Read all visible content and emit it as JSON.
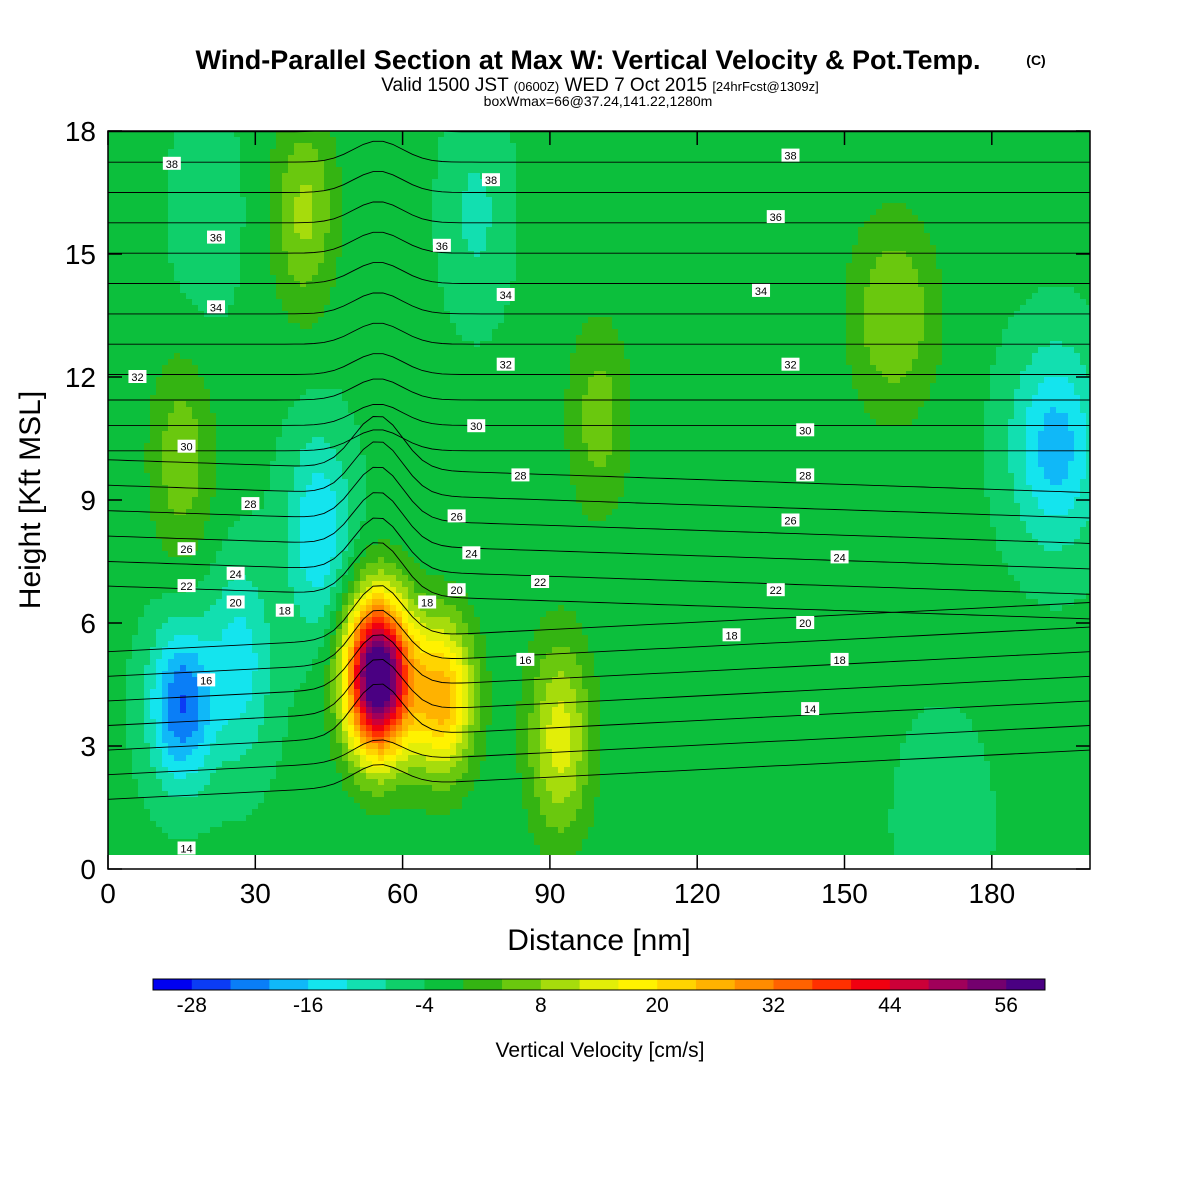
{
  "header": {
    "title": "Wind-Parallel Section at Max W: Vertical Velocity & Pot.Temp.",
    "title_suffix": "(C)",
    "valid_line_a": "Valid 1500 JST",
    "valid_line_b": "(0600Z)",
    "valid_line_c": "WED 7 Oct 2015",
    "valid_line_d": "[24hrFcst@1309z]",
    "box_line": "boxWmax=66@37.24,141.22,1280m"
  },
  "chart_data": {
    "type": "heatmap",
    "xlabel": "Distance [nm]",
    "ylabel": "Height [Kft MSL]",
    "xlim": [
      0,
      200
    ],
    "ylim": [
      0,
      18
    ],
    "x_ticks": [
      "0",
      "30",
      "60",
      "90",
      "120",
      "150",
      "180"
    ],
    "x_tick_values": [
      0,
      30,
      60,
      90,
      120,
      150,
      180
    ],
    "y_ticks": [
      "0",
      "3",
      "6",
      "9",
      "12",
      "15",
      "18"
    ],
    "y_tick_values": [
      0,
      3,
      6,
      9,
      12,
      15,
      18
    ],
    "colorbar": {
      "label": "Vertical Velocity [cm/s]",
      "tick_labels": [
        "-28",
        "-16",
        "-4",
        "8",
        "20",
        "32",
        "44",
        "56"
      ],
      "tick_values": [
        -28,
        -16,
        -4,
        8,
        20,
        32,
        44,
        56
      ],
      "min": -32,
      "step": 4,
      "colors": [
        "#0000f0",
        "#0b3cf5",
        "#0a7ef7",
        "#10b8f8",
        "#14e4ee",
        "#12dfb0",
        "#0fcf6a",
        "#0cbf3c",
        "#34b412",
        "#6ac80e",
        "#a6dc0c",
        "#e2ee08",
        "#fff200",
        "#ffd400",
        "#ffb200",
        "#ff8c00",
        "#ff6200",
        "#ff3000",
        "#f00010",
        "#cc0038",
        "#a0005a",
        "#74006e",
        "#4a0082"
      ]
    },
    "velocity_centers": [
      {
        "x": 55,
        "z": 4.7,
        "v": 66
      },
      {
        "x": 68,
        "z": 4.2,
        "v": 26
      },
      {
        "x": 92,
        "z": 3.2,
        "v": 14
      },
      {
        "x": 40,
        "z": 16.0,
        "v": 9
      },
      {
        "x": 15,
        "z": 10.0,
        "v": 7
      },
      {
        "x": 160,
        "z": 13.5,
        "v": 8
      },
      {
        "x": 100,
        "z": 11.0,
        "v": 6
      },
      {
        "x": 15,
        "z": 4.0,
        "v": -24
      },
      {
        "x": 27,
        "z": 5.0,
        "v": -14
      },
      {
        "x": 43,
        "z": 8.2,
        "v": -16
      },
      {
        "x": 75,
        "z": 16.0,
        "v": -9
      },
      {
        "x": 20,
        "z": 16.0,
        "v": -8
      },
      {
        "x": 193,
        "z": 10.3,
        "v": -18
      },
      {
        "x": 170,
        "z": 1.2,
        "v": -7
      }
    ],
    "theta_levels": [
      14,
      16,
      18,
      20,
      22,
      24,
      26,
      28,
      30,
      32,
      34,
      36,
      38
    ],
    "theta_labels": [
      {
        "text": "38",
        "x": 13,
        "z": 17.2
      },
      {
        "text": "38",
        "x": 78,
        "z": 16.8
      },
      {
        "text": "38",
        "x": 139,
        "z": 17.4
      },
      {
        "text": "36",
        "x": 22,
        "z": 15.4
      },
      {
        "text": "36",
        "x": 68,
        "z": 15.2
      },
      {
        "text": "36",
        "x": 136,
        "z": 15.9
      },
      {
        "text": "34",
        "x": 22,
        "z": 13.7
      },
      {
        "text": "34",
        "x": 81,
        "z": 14.0
      },
      {
        "text": "34",
        "x": 133,
        "z": 14.1
      },
      {
        "text": "32",
        "x": 6,
        "z": 12.0
      },
      {
        "text": "32",
        "x": 81,
        "z": 12.3
      },
      {
        "text": "32",
        "x": 139,
        "z": 12.3
      },
      {
        "text": "30",
        "x": 16,
        "z": 10.3
      },
      {
        "text": "30",
        "x": 75,
        "z": 10.8
      },
      {
        "text": "30",
        "x": 142,
        "z": 10.7
      },
      {
        "text": "28",
        "x": 29,
        "z": 8.9
      },
      {
        "text": "28",
        "x": 84,
        "z": 9.6
      },
      {
        "text": "28",
        "x": 142,
        "z": 9.6
      },
      {
        "text": "26",
        "x": 16,
        "z": 7.8
      },
      {
        "text": "26",
        "x": 71,
        "z": 8.6
      },
      {
        "text": "26",
        "x": 139,
        "z": 8.5
      },
      {
        "text": "24",
        "x": 26,
        "z": 7.2
      },
      {
        "text": "24",
        "x": 74,
        "z": 7.7
      },
      {
        "text": "24",
        "x": 149,
        "z": 7.6
      },
      {
        "text": "22",
        "x": 16,
        "z": 6.9
      },
      {
        "text": "22",
        "x": 88,
        "z": 7.0
      },
      {
        "text": "22",
        "x": 136,
        "z": 6.8
      },
      {
        "text": "20",
        "x": 26,
        "z": 6.5
      },
      {
        "text": "20",
        "x": 71,
        "z": 6.8
      },
      {
        "text": "20",
        "x": 142,
        "z": 6.0
      },
      {
        "text": "18",
        "x": 36,
        "z": 6.3
      },
      {
        "text": "18",
        "x": 65,
        "z": 6.5
      },
      {
        "text": "18",
        "x": 127,
        "z": 5.7
      },
      {
        "text": "18",
        "x": 149,
        "z": 5.1
      },
      {
        "text": "16",
        "x": 20,
        "z": 4.6
      },
      {
        "text": "16",
        "x": 85,
        "z": 5.1
      },
      {
        "text": "14",
        "x": 16,
        "z": 0.5
      },
      {
        "text": "14",
        "x": 143,
        "z": 3.9
      }
    ]
  }
}
